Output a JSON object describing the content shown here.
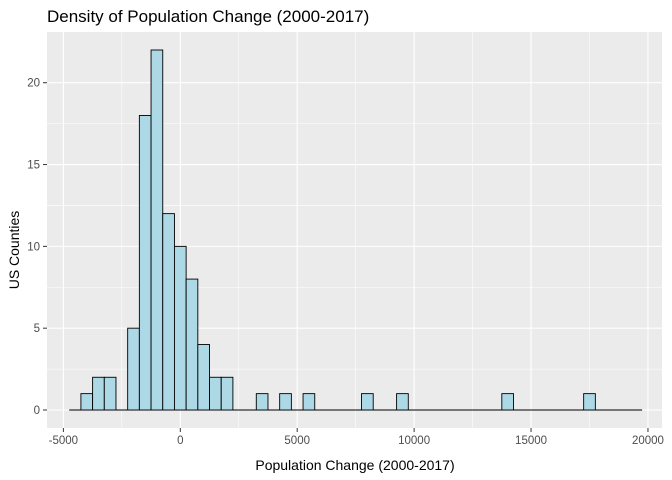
{
  "chart_data": {
    "type": "bar",
    "title": "Density of Population Change (2000-2017)",
    "xlabel": "Population Change (2000-2017)",
    "ylabel": "US Counties",
    "xlim": [
      -5700,
      20600
    ],
    "ylim": [
      -1.1,
      23.1
    ],
    "x_ticks": [
      -5000,
      0,
      5000,
      10000,
      15000,
      20000
    ],
    "x_tick_labels": [
      "-5000",
      "0",
      "5000",
      "10000",
      "15000",
      "20000"
    ],
    "y_ticks": [
      0,
      5,
      10,
      15,
      20
    ],
    "y_tick_labels": [
      "0",
      "5",
      "10",
      "15",
      "20"
    ],
    "bin_width": 500,
    "baseline_range": [
      -4750,
      19750
    ],
    "bars": [
      {
        "x0": -4250,
        "x1": -3750,
        "count": 1
      },
      {
        "x0": -3750,
        "x1": -3250,
        "count": 2
      },
      {
        "x0": -3250,
        "x1": -2750,
        "count": 2
      },
      {
        "x0": -2250,
        "x1": -1750,
        "count": 5
      },
      {
        "x0": -1750,
        "x1": -1250,
        "count": 18
      },
      {
        "x0": -1250,
        "x1": -750,
        "count": 22
      },
      {
        "x0": -750,
        "x1": -250,
        "count": 12
      },
      {
        "x0": -250,
        "x1": 250,
        "count": 10
      },
      {
        "x0": 250,
        "x1": 750,
        "count": 8
      },
      {
        "x0": 750,
        "x1": 1250,
        "count": 4
      },
      {
        "x0": 1250,
        "x1": 1750,
        "count": 2
      },
      {
        "x0": 1750,
        "x1": 2250,
        "count": 2
      },
      {
        "x0": 3250,
        "x1": 3750,
        "count": 1
      },
      {
        "x0": 4250,
        "x1": 4750,
        "count": 1
      },
      {
        "x0": 5250,
        "x1": 5750,
        "count": 1
      },
      {
        "x0": 7750,
        "x1": 8250,
        "count": 1
      },
      {
        "x0": 9250,
        "x1": 9750,
        "count": 1
      },
      {
        "x0": 13750,
        "x1": 14250,
        "count": 1
      },
      {
        "x0": 17250,
        "x1": 17750,
        "count": 1
      }
    ],
    "grid": true,
    "colors": {
      "panel_background": "#ebebeb",
      "grid_major": "#ffffff",
      "bar_fill": "#add8e6",
      "bar_outline": "#000000"
    }
  }
}
